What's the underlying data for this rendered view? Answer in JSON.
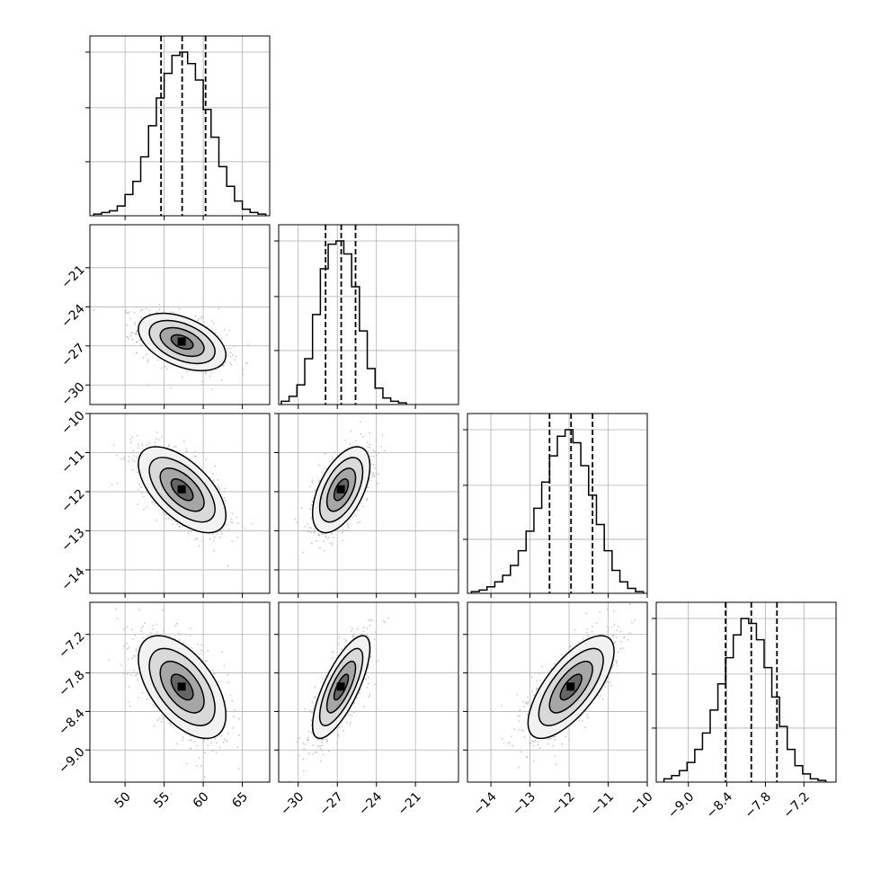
{
  "chart_data": {
    "type": "corner",
    "grid": true,
    "parameters": [
      {
        "index": 0,
        "range": [
          45.5,
          68.5
        ],
        "ticks": [
          50,
          55,
          60,
          65
        ],
        "tick_labels": [
          "50",
          "55",
          "60",
          "65"
        ],
        "median": 57.3,
        "q16": 54.6,
        "q84": 60.3,
        "hist_bin_edges": [
          46,
          47,
          48,
          49,
          50,
          51,
          52,
          53,
          54,
          55,
          56,
          57,
          58,
          59,
          60,
          61,
          62,
          63,
          64,
          65,
          66,
          67,
          68
        ],
        "hist_counts": [
          0.01,
          0.02,
          0.03,
          0.06,
          0.13,
          0.21,
          0.36,
          0.55,
          0.72,
          0.87,
          0.98,
          1.0,
          0.93,
          0.83,
          0.65,
          0.48,
          0.3,
          0.18,
          0.09,
          0.04,
          0.02,
          0.01
        ],
        "mean": 57.3,
        "std": 2.8
      },
      {
        "index": 1,
        "range": [
          -31.5,
          -17.7
        ],
        "ticks": [
          -30,
          -27,
          -24,
          -21
        ],
        "tick_labels": [
          "−30",
          "−27",
          "−24",
          "−21"
        ],
        "median": -26.7,
        "q16": -27.9,
        "q84": -25.6,
        "hist_bin_edges": [
          -31.3,
          -30.7,
          -30.1,
          -29.5,
          -28.9,
          -28.3,
          -27.7,
          -27.1,
          -26.5,
          -25.9,
          -25.3,
          -24.7,
          -24.1,
          -23.5,
          -22.9,
          -22.3,
          -21.7
        ],
        "hist_counts": [
          0.02,
          0.05,
          0.12,
          0.28,
          0.55,
          0.83,
          0.98,
          1.0,
          0.92,
          0.72,
          0.45,
          0.22,
          0.1,
          0.04,
          0.02,
          0.01
        ],
        "mean": -26.7,
        "std": 1.1
      },
      {
        "index": 2,
        "range": [
          -14.6,
          -10.0
        ],
        "ticks": [
          -14,
          -13,
          -12,
          -11,
          -10
        ],
        "tick_labels": [
          "−14",
          "−13",
          "−12",
          "−11",
          "−10"
        ],
        "median": -11.95,
        "q16": -12.5,
        "q84": -11.4,
        "hist_bin_edges": [
          -14.5,
          -14.3,
          -14.1,
          -13.9,
          -13.7,
          -13.5,
          -13.3,
          -13.1,
          -12.9,
          -12.7,
          -12.5,
          -12.3,
          -12.1,
          -11.9,
          -11.7,
          -11.5,
          -11.3,
          -11.1,
          -10.9,
          -10.7,
          -10.5,
          -10.3,
          -10.1
        ],
        "hist_counts": [
          0.01,
          0.02,
          0.04,
          0.07,
          0.11,
          0.17,
          0.26,
          0.38,
          0.52,
          0.68,
          0.84,
          0.96,
          1.0,
          0.92,
          0.78,
          0.6,
          0.42,
          0.26,
          0.14,
          0.07,
          0.03,
          0.01
        ],
        "mean": -11.95,
        "std": 0.55
      },
      {
        "index": 3,
        "range": [
          -9.5,
          -6.7
        ],
        "ticks": [
          -9.0,
          -8.4,
          -7.8,
          -7.2
        ],
        "tick_labels": [
          "−9.0",
          "−8.4",
          "−7.8",
          "−7.2"
        ],
        "ytick_labels": [
          "−7.2",
          "−7.8",
          "−8.4",
          "−9.0"
        ],
        "median": -8.02,
        "q16": -8.42,
        "q84": -7.62,
        "hist_bin_edges": [
          -9.38,
          -9.26,
          -9.14,
          -9.02,
          -8.9,
          -8.78,
          -8.66,
          -8.54,
          -8.42,
          -8.3,
          -8.18,
          -8.06,
          -7.94,
          -7.82,
          -7.7,
          -7.58,
          -7.46,
          -7.34,
          -7.22,
          -7.1,
          -6.98,
          -6.86
        ],
        "hist_counts": [
          0.02,
          0.04,
          0.07,
          0.12,
          0.2,
          0.3,
          0.44,
          0.6,
          0.76,
          0.9,
          1.0,
          0.97,
          0.87,
          0.7,
          0.52,
          0.34,
          0.2,
          0.1,
          0.05,
          0.02,
          0.01
        ],
        "mean": -8.02,
        "std": 0.4
      }
    ],
    "correlations": [
      {
        "params": [
          1,
          0
        ],
        "rho": -0.45
      },
      {
        "params": [
          2,
          0
        ],
        "rho": -0.6
      },
      {
        "params": [
          2,
          1
        ],
        "rho": 0.55
      },
      {
        "params": [
          3,
          0
        ],
        "rho": -0.55
      },
      {
        "params": [
          3,
          1
        ],
        "rho": 0.75
      },
      {
        "params": [
          3,
          2
        ],
        "rho": 0.7
      }
    ],
    "contour_levels_sigma": [
      0.5,
      1.0,
      1.5,
      2.0
    ]
  }
}
